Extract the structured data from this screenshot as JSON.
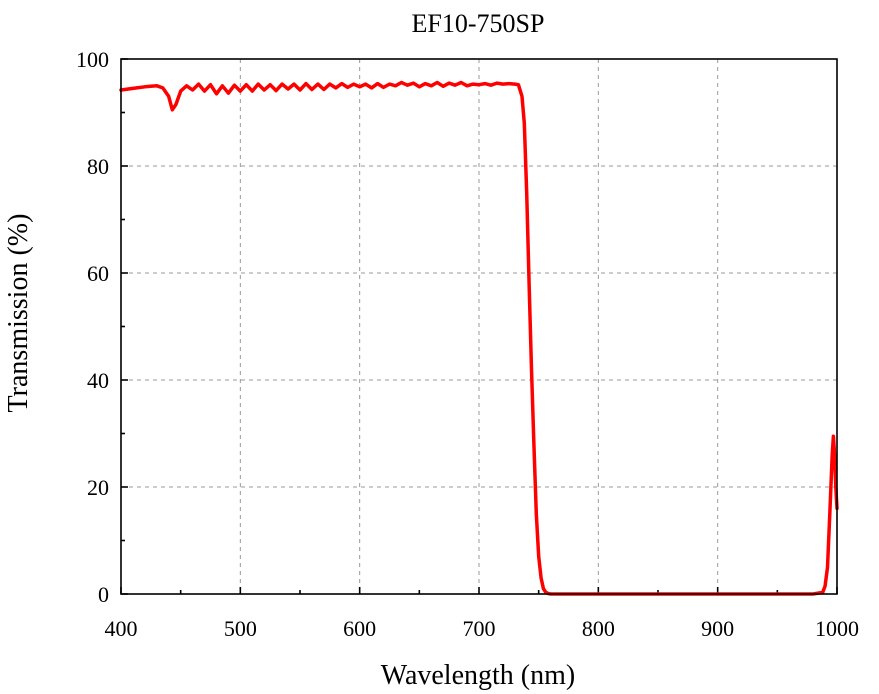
{
  "chart_data": {
    "type": "line",
    "title": "EF10-750SP",
    "xlabel": "Wavelength (nm)",
    "ylabel": "Transmission (%)",
    "xlim": [
      400,
      1000
    ],
    "ylim": [
      0,
      100
    ],
    "x_ticks": [
      400,
      500,
      600,
      700,
      800,
      900,
      1000
    ],
    "y_ticks": [
      0,
      20,
      40,
      60,
      80,
      100
    ],
    "grid": true,
    "legend": "none",
    "series": [
      {
        "color": "#ff0000",
        "x": [
          400,
          410,
          420,
          430,
          435,
          440,
          443,
          446,
          450,
          455,
          460,
          465,
          470,
          475,
          480,
          485,
          490,
          495,
          500,
          505,
          510,
          515,
          520,
          525,
          530,
          535,
          540,
          545,
          550,
          555,
          560,
          565,
          570,
          575,
          580,
          585,
          590,
          595,
          600,
          605,
          610,
          615,
          620,
          625,
          630,
          635,
          640,
          645,
          650,
          655,
          660,
          665,
          670,
          675,
          680,
          685,
          690,
          695,
          700,
          705,
          710,
          715,
          720,
          725,
          730,
          733,
          736,
          738,
          740,
          742,
          744,
          746,
          748,
          750,
          752,
          754,
          756,
          758,
          760,
          780,
          800,
          850,
          900,
          950,
          980,
          988,
          990,
          992,
          994,
          996,
          997,
          998,
          999,
          1000
        ],
        "y": [
          94.2,
          94.5,
          94.8,
          95.0,
          94.6,
          93.0,
          90.5,
          91.5,
          94.0,
          95.0,
          94.2,
          95.3,
          94.0,
          95.2,
          93.5,
          95.0,
          93.6,
          95.1,
          94.0,
          95.2,
          94.0,
          95.3,
          94.2,
          95.2,
          94.1,
          95.3,
          94.4,
          95.3,
          94.2,
          95.4,
          94.3,
          95.3,
          94.3,
          95.3,
          94.6,
          95.4,
          94.7,
          95.3,
          94.8,
          95.3,
          94.6,
          95.4,
          94.7,
          95.3,
          95.0,
          95.6,
          95.1,
          95.5,
          94.8,
          95.4,
          95.0,
          95.6,
          94.9,
          95.5,
          95.1,
          95.6,
          95.0,
          95.3,
          95.2,
          95.4,
          95.1,
          95.5,
          95.3,
          95.4,
          95.3,
          95.2,
          93.0,
          88.0,
          75.0,
          58.0,
          42.0,
          28.0,
          15.0,
          7.0,
          3.0,
          1.0,
          0.3,
          0.1,
          0.0,
          0.0,
          0.0,
          0.0,
          0.0,
          0.0,
          0.0,
          0.3,
          1.5,
          5.0,
          15.0,
          26.0,
          29.5,
          26.0,
          20.0,
          16.0
        ]
      }
    ]
  }
}
